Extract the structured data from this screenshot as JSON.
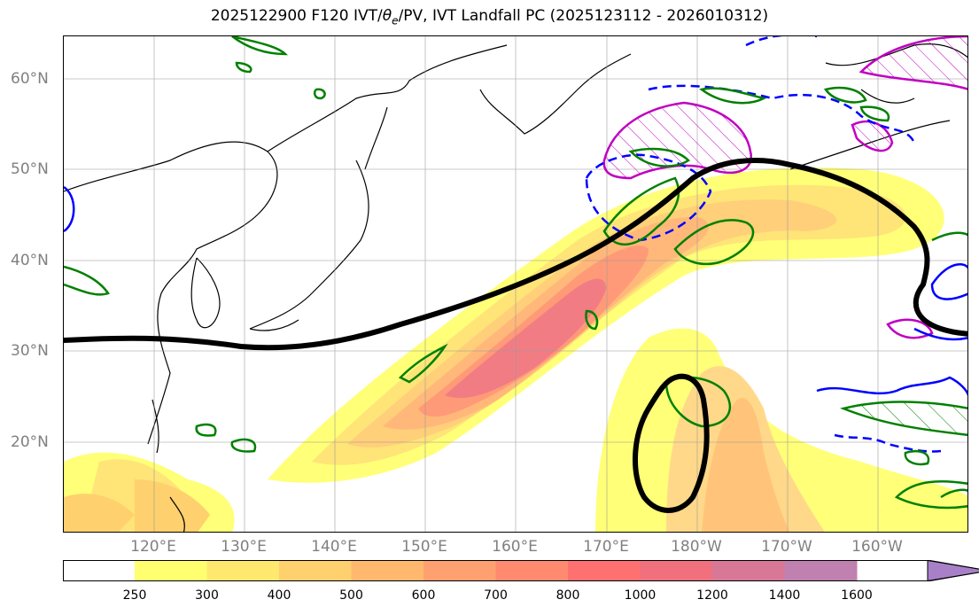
{
  "title": "2025122900 F120 IVT/θe/PV, IVT Landfall PC (2025123112 - 2026010312)",
  "title_parts": {
    "prefix": "2025122900 F120 IVT/",
    "theta": "θ",
    "theta_sub": "e",
    "suffix": "/PV, IVT Landfall PC (2025123112 - 2026010312)"
  },
  "map": {
    "lat_labels": [
      "60°N",
      "50°N",
      "40°N",
      "30°N",
      "20°N"
    ],
    "lon_labels": [
      "120°E",
      "130°E",
      "140°E",
      "150°E",
      "160°E",
      "170°E",
      "180°W",
      "170°W",
      "160°W"
    ],
    "extent": {
      "lon_min": 110,
      "lon_max": 210,
      "lat_min": 10,
      "lat_max": 65
    }
  },
  "colorbar": {
    "levels": [
      "250",
      "300",
      "400",
      "500",
      "600",
      "700",
      "800",
      "1000",
      "1200",
      "1400",
      "1600"
    ],
    "colors": [
      "#ffff70",
      "#ffe86e",
      "#ffd06e",
      "#ffb86e",
      "#ffa070",
      "#ff8a70",
      "#ff7070",
      "#f0707e",
      "#d87896",
      "#c080b0",
      "#a880c8"
    ],
    "extend": "max"
  },
  "colors": {
    "ivt_contour": "#000000",
    "theta_e": "#008000",
    "pv_positive": "#0000ff",
    "pv_hatch": "#c000c0",
    "lat_lon_labels": "#808080"
  }
}
